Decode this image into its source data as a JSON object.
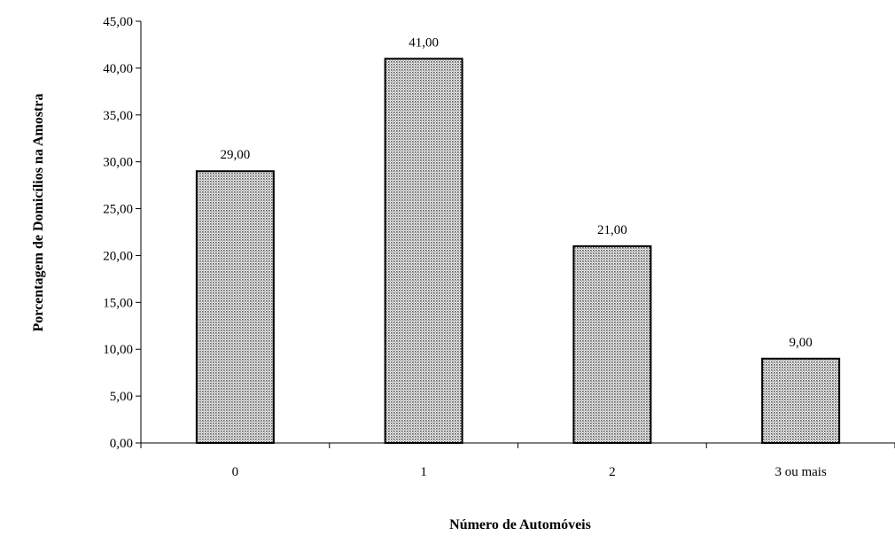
{
  "chart_data": {
    "type": "bar",
    "categories": [
      "0",
      "1",
      "2",
      "3 ou mais"
    ],
    "values": [
      29.0,
      41.0,
      21.0,
      9.0
    ],
    "data_labels": [
      "29,00",
      "41,00",
      "21,00",
      "9,00"
    ],
    "title": "",
    "xlabel": "Número de Automóveis",
    "ylabel": "Porcentagem de Domicílios na Amostra",
    "ylim": [
      0,
      45
    ],
    "y_ticks": [
      0,
      5,
      10,
      15,
      20,
      25,
      30,
      35,
      40,
      45
    ],
    "y_tick_labels": [
      "0,00",
      "5,00",
      "10,00",
      "15,00",
      "20,00",
      "25,00",
      "30,00",
      "35,00",
      "40,00",
      "45,00"
    ],
    "grid": false,
    "legend": "none",
    "bar_fill": "dotted-gray",
    "colors": {
      "bar_fill": "#ffffff",
      "bar_dots": "#555555",
      "bar_stroke": "#000000",
      "axis": "#000000"
    }
  }
}
